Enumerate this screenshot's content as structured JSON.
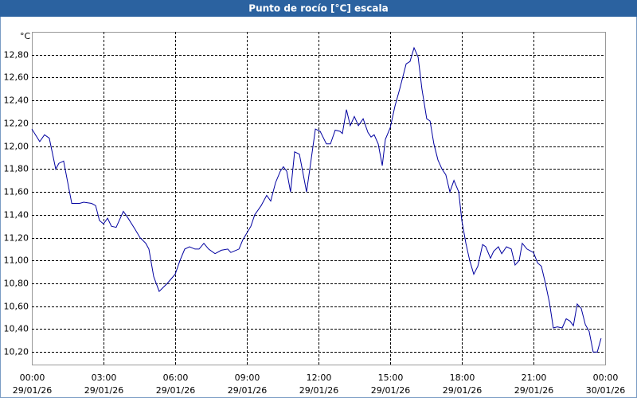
{
  "chart_data": {
    "type": "line",
    "title": "Punto de rocío [°C] escala",
    "y_unit": "°C",
    "color": "#0000a0",
    "grid": true,
    "xlim": [
      0,
      24
    ],
    "ylim": [
      10.09,
      13.0
    ],
    "xticks": [
      {
        "value": 0,
        "label": "00:00"
      },
      {
        "value": 3,
        "label": "03:00"
      },
      {
        "value": 6,
        "label": "06:00"
      },
      {
        "value": 9,
        "label": "09:00"
      },
      {
        "value": 12,
        "label": "12:00"
      },
      {
        "value": 15,
        "label": "15:00"
      },
      {
        "value": 18,
        "label": "18:00"
      },
      {
        "value": 21,
        "label": "21:00"
      },
      {
        "value": 24,
        "label": "00:00"
      }
    ],
    "xtick_dates": [
      "29/01/26",
      "29/01/26",
      "29/01/26",
      "29/01/26",
      "29/01/26",
      "29/01/26",
      "29/01/26",
      "29/01/26",
      "30/01/26"
    ],
    "yticks": [
      {
        "value": 10.2,
        "label": "10,20"
      },
      {
        "value": 10.4,
        "label": "10,40"
      },
      {
        "value": 10.6,
        "label": "10,60"
      },
      {
        "value": 10.8,
        "label": "10,80"
      },
      {
        "value": 11.0,
        "label": "11,00"
      },
      {
        "value": 11.2,
        "label": "11,20"
      },
      {
        "value": 11.4,
        "label": "11,40"
      },
      {
        "value": 11.6,
        "label": "11,60"
      },
      {
        "value": 11.8,
        "label": "11,80"
      },
      {
        "value": 12.0,
        "label": "12,00"
      },
      {
        "value": 12.2,
        "label": "12,20"
      },
      {
        "value": 12.4,
        "label": "12,40"
      },
      {
        "value": 12.6,
        "label": "12,60"
      },
      {
        "value": 12.8,
        "label": "12,80"
      }
    ],
    "x": [
      0,
      0.33,
      0.53,
      0.73,
      1,
      1.13,
      1.33,
      1.67,
      2,
      2.17,
      2.5,
      2.67,
      2.83,
      3,
      3.17,
      3.33,
      3.53,
      3.83,
      4,
      4.33,
      4.53,
      4.77,
      4.9,
      5.1,
      5.33,
      5.67,
      6,
      6.2,
      6.4,
      6.6,
      6.83,
      7,
      7.2,
      7.4,
      7.67,
      7.93,
      8.2,
      8.33,
      8.67,
      8.83,
      9.17,
      9.33,
      9.6,
      9.83,
      10,
      10.2,
      10.4,
      10.53,
      10.67,
      10.83,
      11,
      11.2,
      11.5,
      11.67,
      11.87,
      12.07,
      12.33,
      12.5,
      12.7,
      12.9,
      13,
      13.17,
      13.33,
      13.5,
      13.67,
      13.87,
      14.07,
      14.2,
      14.33,
      14.5,
      14.67,
      14.8,
      15,
      15.2,
      15.4,
      15.67,
      15.83,
      16,
      16.17,
      16.33,
      16.53,
      16.67,
      16.83,
      17,
      17.17,
      17.33,
      17.5,
      17.67,
      17.87,
      18,
      18.17,
      18.33,
      18.5,
      18.67,
      18.87,
      19,
      19.2,
      19.33,
      19.53,
      19.67,
      19.87,
      20.07,
      20.23,
      20.4,
      20.53,
      20.73,
      21,
      21.17,
      21.33,
      21.5,
      21.67,
      21.83,
      22,
      22.2,
      22.37,
      22.53,
      22.67,
      22.83,
      23,
      23.17,
      23.33,
      23.5,
      23.67,
      23.83
    ],
    "values": [
      12.15,
      12.04,
      12.1,
      12.07,
      11.8,
      11.85,
      11.87,
      11.5,
      11.5,
      11.51,
      11.5,
      11.48,
      11.35,
      11.32,
      11.37,
      11.3,
      11.29,
      11.43,
      11.38,
      11.27,
      11.2,
      11.15,
      11.1,
      10.86,
      10.73,
      10.8,
      10.88,
      11.0,
      11.1,
      11.12,
      11.1,
      11.1,
      11.15,
      11.1,
      11.06,
      11.09,
      11.1,
      11.07,
      11.1,
      11.18,
      11.3,
      11.4,
      11.48,
      11.57,
      11.52,
      11.68,
      11.78,
      11.82,
      11.78,
      11.6,
      11.95,
      11.93,
      11.6,
      11.85,
      12.15,
      12.13,
      12.02,
      12.02,
      12.14,
      12.13,
      12.11,
      12.32,
      12.18,
      12.26,
      12.18,
      12.24,
      12.12,
      12.08,
      12.1,
      12.02,
      11.83,
      12.06,
      12.16,
      12.35,
      12.5,
      12.72,
      12.74,
      12.86,
      12.78,
      12.5,
      12.24,
      12.22,
      12.02,
      11.88,
      11.8,
      11.75,
      11.6,
      11.7,
      11.6,
      11.35,
      11.15,
      11.0,
      10.88,
      10.95,
      11.14,
      11.12,
      11.02,
      11.08,
      11.12,
      11.06,
      11.12,
      11.1,
      10.96,
      11.0,
      11.15,
      11.1,
      11.07,
      10.98,
      10.95,
      10.8,
      10.63,
      10.41,
      10.42,
      10.41,
      10.49,
      10.47,
      10.43,
      10.62,
      10.58,
      10.44,
      10.38,
      10.2,
      10.2,
      10.32
    ]
  }
}
